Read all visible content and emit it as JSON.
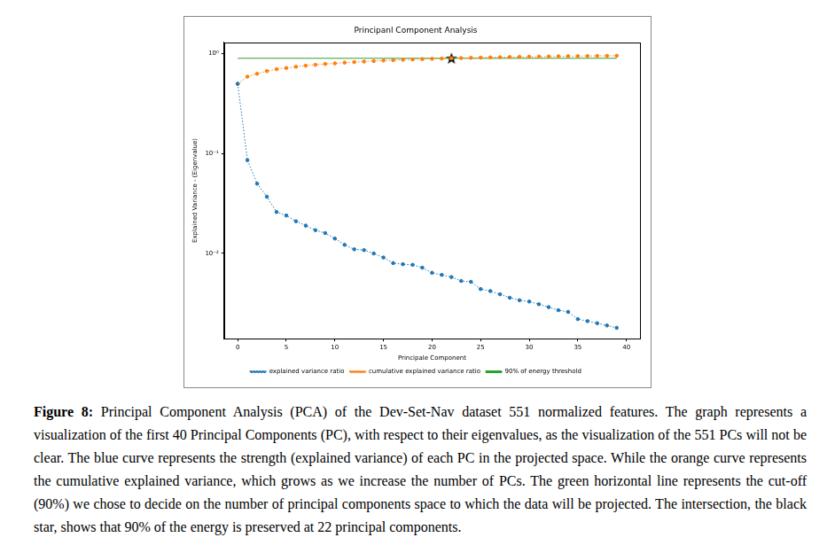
{
  "chart_data": {
    "type": "line",
    "title": "Principanl Component Analysis",
    "x_label": "Principale Component",
    "y_label": "Explained Variance - (Eigenvalue)",
    "x": [
      0,
      1,
      2,
      3,
      4,
      5,
      6,
      7,
      8,
      9,
      10,
      11,
      12,
      13,
      14,
      15,
      16,
      17,
      18,
      19,
      20,
      21,
      22,
      23,
      24,
      25,
      26,
      27,
      28,
      29,
      30,
      31,
      32,
      33,
      34,
      35,
      36,
      37,
      38,
      39
    ],
    "series": [
      {
        "name": "explained variance ratio",
        "color": "#1f77b4",
        "marker": "circle",
        "line_style": "dotted",
        "values": [
          0.5,
          0.086,
          0.05,
          0.037,
          0.026,
          0.024,
          0.021,
          0.019,
          0.0171,
          0.016,
          0.0141,
          0.0122,
          0.011,
          0.0108,
          0.01,
          0.0091,
          0.008,
          0.0078,
          0.0077,
          0.0072,
          0.0064,
          0.0061,
          0.0058,
          0.0053,
          0.0052,
          0.0044,
          0.0042,
          0.0039,
          0.0036,
          0.0034,
          0.0033,
          0.0031,
          0.0029,
          0.0027,
          0.0026,
          0.0022,
          0.0021,
          0.002,
          0.0019,
          0.0018
        ]
      },
      {
        "name": "cumulative explained variance ratio",
        "color": "#ff7f0e",
        "marker": "circle",
        "line_style": "dotted",
        "values": [
          0.5,
          0.59,
          0.63,
          0.67,
          0.7,
          0.72,
          0.74,
          0.76,
          0.775,
          0.79,
          0.8,
          0.815,
          0.825,
          0.835,
          0.845,
          0.855,
          0.863,
          0.87,
          0.877,
          0.884,
          0.89,
          0.895,
          0.9,
          0.905,
          0.91,
          0.915,
          0.919,
          0.923,
          0.927,
          0.93,
          0.933,
          0.936,
          0.939,
          0.942,
          0.945,
          0.947,
          0.949,
          0.951,
          0.953,
          0.955
        ]
      },
      {
        "name": "90% of energy threshold",
        "color": "#2ca02c",
        "marker": "none",
        "line_style": "solid",
        "values": [
          0.9,
          0.9,
          0.9,
          0.9,
          0.9,
          0.9,
          0.9,
          0.9,
          0.9,
          0.9,
          0.9,
          0.9,
          0.9,
          0.9,
          0.9,
          0.9,
          0.9,
          0.9,
          0.9,
          0.9,
          0.9,
          0.9,
          0.9,
          0.9,
          0.9,
          0.9,
          0.9,
          0.9,
          0.9,
          0.9,
          0.9,
          0.9,
          0.9,
          0.9,
          0.9,
          0.9,
          0.9,
          0.9,
          0.9,
          0.9
        ]
      }
    ],
    "annotations": [
      {
        "x": 22,
        "y": 0.9,
        "marker": "star",
        "color": "#000000"
      }
    ],
    "log": "y",
    "grid": false,
    "legend": "bottom",
    "xlim": [
      -1.4,
      41.4
    ],
    "xticks": [
      0,
      5,
      10,
      15,
      20,
      25,
      30,
      35,
      40
    ],
    "ylim": [
      0.0014,
      1.3
    ],
    "yticks": [
      {
        "value": 0.01,
        "label": "10⁻²"
      },
      {
        "value": 0.1,
        "label": "10⁻¹"
      },
      {
        "value": 1,
        "label": "10⁰"
      }
    ]
  },
  "caption": {
    "label": "Figure 8:",
    "text": "Principal Component Analysis (PCA) of the Dev-Set-Nav dataset 551 normalized features. The graph represents a visualization of the first 40 Principal Components (PC), with respect to their eigenvalues, as the visualization of the 551 PCs will not be clear. The blue curve represents the strength (explained variance) of each PC in the projected space. While the orange curve represents the cumulative explained variance, which grows as we increase the number of PCs. The green horizontal line represents the cut-off (90%) we chose to decide on the number of principal components space to which the data will be projected. The intersection, the black star, shows that 90% of the energy is preserved at 22 principal components."
  }
}
